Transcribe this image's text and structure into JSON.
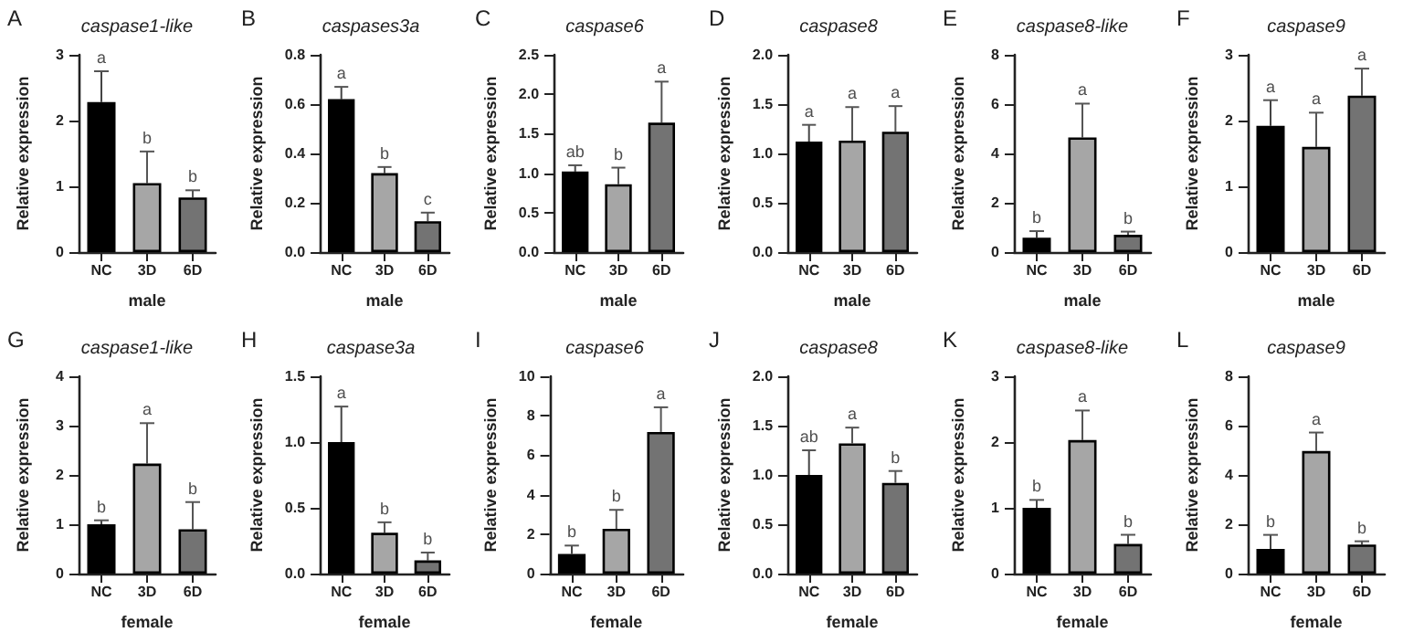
{
  "chart_data": [
    {
      "type": "bar",
      "title": "caspase1-like",
      "xlabel": "male",
      "ylabel": "Relative expression",
      "categories": [
        "NC",
        "3D",
        "6D"
      ],
      "values": [
        2.28,
        1.05,
        0.83
      ],
      "errors": [
        0.47,
        0.48,
        0.11
      ],
      "colors": [
        "#000000",
        "#a6a6a6",
        "#737373"
      ],
      "ylim": [
        0,
        3
      ],
      "yticks": [
        0,
        1,
        2,
        3
      ],
      "annotations": [
        "A",
        {
          "text": "a",
          "x": "NC",
          "y": 2.75
        },
        {
          "text": "b",
          "x": "3D",
          "y": 1.53
        },
        {
          "text": "b",
          "x": "6D",
          "y": 0.94
        }
      ]
    },
    {
      "type": "bar",
      "title": "caspases3a",
      "xlabel": "male",
      "ylabel": "Relative expression",
      "categories": [
        "NC",
        "3D",
        "6D"
      ],
      "values": [
        0.62,
        0.32,
        0.125
      ],
      "errors": [
        0.05,
        0.025,
        0.035
      ],
      "colors": [
        "#000000",
        "#a6a6a6",
        "#737373"
      ],
      "ylim": [
        0,
        0.8
      ],
      "yticks": [
        {
          "value": 0,
          "label": "0.0"
        },
        0.2,
        0.4,
        0.6,
        0.8
      ],
      "annotations": [
        "B",
        {
          "text": "a",
          "x": "NC",
          "y": 0.67
        },
        {
          "text": "b",
          "x": "3D",
          "y": 0.345
        },
        {
          "text": "c",
          "x": "6D",
          "y": 0.16
        }
      ]
    },
    {
      "type": "bar",
      "title": "caspase6",
      "xlabel": "male",
      "ylabel": "Relative expression",
      "categories": [
        "NC",
        "3D",
        "6D"
      ],
      "values": [
        1.02,
        0.86,
        1.64
      ],
      "errors": [
        0.08,
        0.21,
        0.52
      ],
      "colors": [
        "#000000",
        "#a6a6a6",
        "#737373"
      ],
      "ylim": [
        0,
        2.5
      ],
      "yticks": [
        {
          "value": 0,
          "label": "0.0"
        },
        0.5,
        {
          "value": 1,
          "label": "1.0"
        },
        1.5,
        {
          "value": 2,
          "label": "2.0"
        },
        2.5
      ],
      "annotations": [
        "C",
        {
          "text": "ab",
          "x": "NC",
          "y": 1.1
        },
        {
          "text": "b",
          "x": "3D",
          "y": 1.07
        },
        {
          "text": "a",
          "x": "6D",
          "y": 2.16
        }
      ]
    },
    {
      "type": "bar",
      "title": "caspase8",
      "xlabel": "male",
      "ylabel": "Relative expression",
      "categories": [
        "NC",
        "3D",
        "6D"
      ],
      "values": [
        1.12,
        1.13,
        1.22
      ],
      "errors": [
        0.17,
        0.34,
        0.26
      ],
      "colors": [
        "#000000",
        "#a6a6a6",
        "#737373"
      ],
      "ylim": [
        0,
        2
      ],
      "yticks": [
        {
          "value": 0,
          "label": "0.0"
        },
        0.5,
        {
          "value": 1,
          "label": "1.0"
        },
        1.5,
        {
          "value": 2,
          "label": "2.0"
        }
      ],
      "annotations": [
        "D",
        {
          "text": "a",
          "x": "NC",
          "y": 1.29
        },
        {
          "text": "a",
          "x": "3D",
          "y": 1.47
        },
        {
          "text": "a",
          "x": "6D",
          "y": 1.48
        }
      ]
    },
    {
      "type": "bar",
      "title": "caspase8-like",
      "xlabel": "male",
      "ylabel": "Relative expression",
      "categories": [
        "NC",
        "3D",
        "6D"
      ],
      "values": [
        0.58,
        4.65,
        0.7
      ],
      "errors": [
        0.27,
        1.37,
        0.13
      ],
      "colors": [
        "#000000",
        "#a6a6a6",
        "#737373"
      ],
      "ylim": [
        0,
        8
      ],
      "yticks": [
        0,
        2,
        4,
        6,
        8
      ],
      "annotations": [
        "E",
        {
          "text": "b",
          "x": "NC",
          "y": 0.85
        },
        {
          "text": "a",
          "x": "3D",
          "y": 6.02
        },
        {
          "text": "b",
          "x": "6D",
          "y": 0.83
        }
      ]
    },
    {
      "type": "bar",
      "title": "caspase9",
      "xlabel": "male",
      "ylabel": "Relative expression",
      "categories": [
        "NC",
        "3D",
        "6D"
      ],
      "values": [
        1.92,
        1.6,
        2.38
      ],
      "errors": [
        0.39,
        0.52,
        0.41
      ],
      "colors": [
        "#000000",
        "#a6a6a6",
        "#737373"
      ],
      "ylim": [
        0,
        3
      ],
      "yticks": [
        0,
        1,
        2,
        3
      ],
      "annotations": [
        "F",
        {
          "text": "a",
          "x": "NC",
          "y": 2.31
        },
        {
          "text": "a",
          "x": "3D",
          "y": 2.12
        },
        {
          "text": "a",
          "x": "6D",
          "y": 2.79
        }
      ]
    },
    {
      "type": "bar",
      "title": "caspase1-like",
      "xlabel": "female",
      "ylabel": "Relative expression",
      "categories": [
        "NC",
        "3D",
        "6D"
      ],
      "values": [
        1.0,
        2.23,
        0.9
      ],
      "errors": [
        0.08,
        0.82,
        0.55
      ],
      "colors": [
        "#000000",
        "#a6a6a6",
        "#737373"
      ],
      "ylim": [
        0,
        4
      ],
      "yticks": [
        0,
        1,
        2,
        3,
        4
      ],
      "annotations": [
        "G",
        {
          "text": "b",
          "x": "NC",
          "y": 1.08
        },
        {
          "text": "a",
          "x": "3D",
          "y": 3.05
        },
        {
          "text": "b",
          "x": "6D",
          "y": 1.45
        }
      ]
    },
    {
      "type": "bar",
      "title": "caspase3a",
      "xlabel": "female",
      "ylabel": "Relative expression",
      "categories": [
        "NC",
        "3D",
        "6D"
      ],
      "values": [
        1.0,
        0.31,
        0.1
      ],
      "errors": [
        0.27,
        0.08,
        0.06
      ],
      "colors": [
        "#000000",
        "#a6a6a6",
        "#737373"
      ],
      "ylim": [
        0,
        1.5
      ],
      "yticks": [
        {
          "value": 0,
          "label": "0.0"
        },
        0.5,
        {
          "value": 1,
          "label": "1.0"
        },
        1.5
      ],
      "annotations": [
        "H",
        {
          "text": "a",
          "x": "NC",
          "y": 1.27
        },
        {
          "text": "b",
          "x": "3D",
          "y": 0.39
        },
        {
          "text": "b",
          "x": "6D",
          "y": 0.16
        }
      ]
    },
    {
      "type": "bar",
      "title": "caspase6",
      "xlabel": "female",
      "ylabel": "Relative expression",
      "categories": [
        "NC",
        "3D",
        "6D"
      ],
      "values": [
        1.0,
        2.27,
        7.18
      ],
      "errors": [
        0.42,
        0.96,
        1.25
      ],
      "colors": [
        "#000000",
        "#a6a6a6",
        "#737373"
      ],
      "ylim": [
        0,
        10
      ],
      "yticks": [
        0,
        2,
        4,
        6,
        8,
        10
      ],
      "annotations": [
        "I",
        {
          "text": "b",
          "x": "NC",
          "y": 1.42
        },
        {
          "text": "b",
          "x": "3D",
          "y": 3.23
        },
        {
          "text": "a",
          "x": "6D",
          "y": 8.43
        }
      ]
    },
    {
      "type": "bar",
      "title": "caspase8",
      "xlabel": "female",
      "ylabel": "Relative expression",
      "categories": [
        "NC",
        "3D",
        "6D"
      ],
      "values": [
        1.0,
        1.32,
        0.92
      ],
      "errors": [
        0.25,
        0.16,
        0.12
      ],
      "colors": [
        "#000000",
        "#a6a6a6",
        "#737373"
      ],
      "ylim": [
        0,
        2
      ],
      "yticks": [
        {
          "value": 0,
          "label": "0.0"
        },
        0.5,
        {
          "value": 1,
          "label": "1.0"
        },
        1.5,
        {
          "value": 2,
          "label": "2.0"
        }
      ],
      "annotations": [
        "J",
        {
          "text": "ab",
          "x": "NC",
          "y": 1.25
        },
        {
          "text": "a",
          "x": "3D",
          "y": 1.48
        },
        {
          "text": "b",
          "x": "6D",
          "y": 1.04
        }
      ]
    },
    {
      "type": "bar",
      "title": "caspase8-like",
      "xlabel": "female",
      "ylabel": "Relative expression",
      "categories": [
        "NC",
        "3D",
        "6D"
      ],
      "values": [
        1.0,
        2.03,
        0.45
      ],
      "errors": [
        0.12,
        0.45,
        0.14
      ],
      "colors": [
        "#000000",
        "#a6a6a6",
        "#737373"
      ],
      "ylim": [
        0,
        3
      ],
      "yticks": [
        0,
        1,
        2,
        3
      ],
      "annotations": [
        "K",
        {
          "text": "b",
          "x": "NC",
          "y": 1.12
        },
        {
          "text": "a",
          "x": "3D",
          "y": 2.48
        },
        {
          "text": "b",
          "x": "6D",
          "y": 0.59
        }
      ]
    },
    {
      "type": "bar",
      "title": "caspase9",
      "xlabel": "female",
      "ylabel": "Relative expression",
      "categories": [
        "NC",
        "3D",
        "6D"
      ],
      "values": [
        1.0,
        4.97,
        1.18
      ],
      "errors": [
        0.57,
        0.75,
        0.13
      ],
      "colors": [
        "#000000",
        "#a6a6a6",
        "#737373"
      ],
      "ylim": [
        0,
        8
      ],
      "yticks": [
        0,
        2,
        4,
        6,
        8
      ],
      "annotations": [
        "L",
        {
          "text": "b",
          "x": "NC",
          "y": 1.57
        },
        {
          "text": "a",
          "x": "3D",
          "y": 5.72
        },
        {
          "text": "b",
          "x": "6D",
          "y": 1.31
        }
      ]
    }
  ]
}
